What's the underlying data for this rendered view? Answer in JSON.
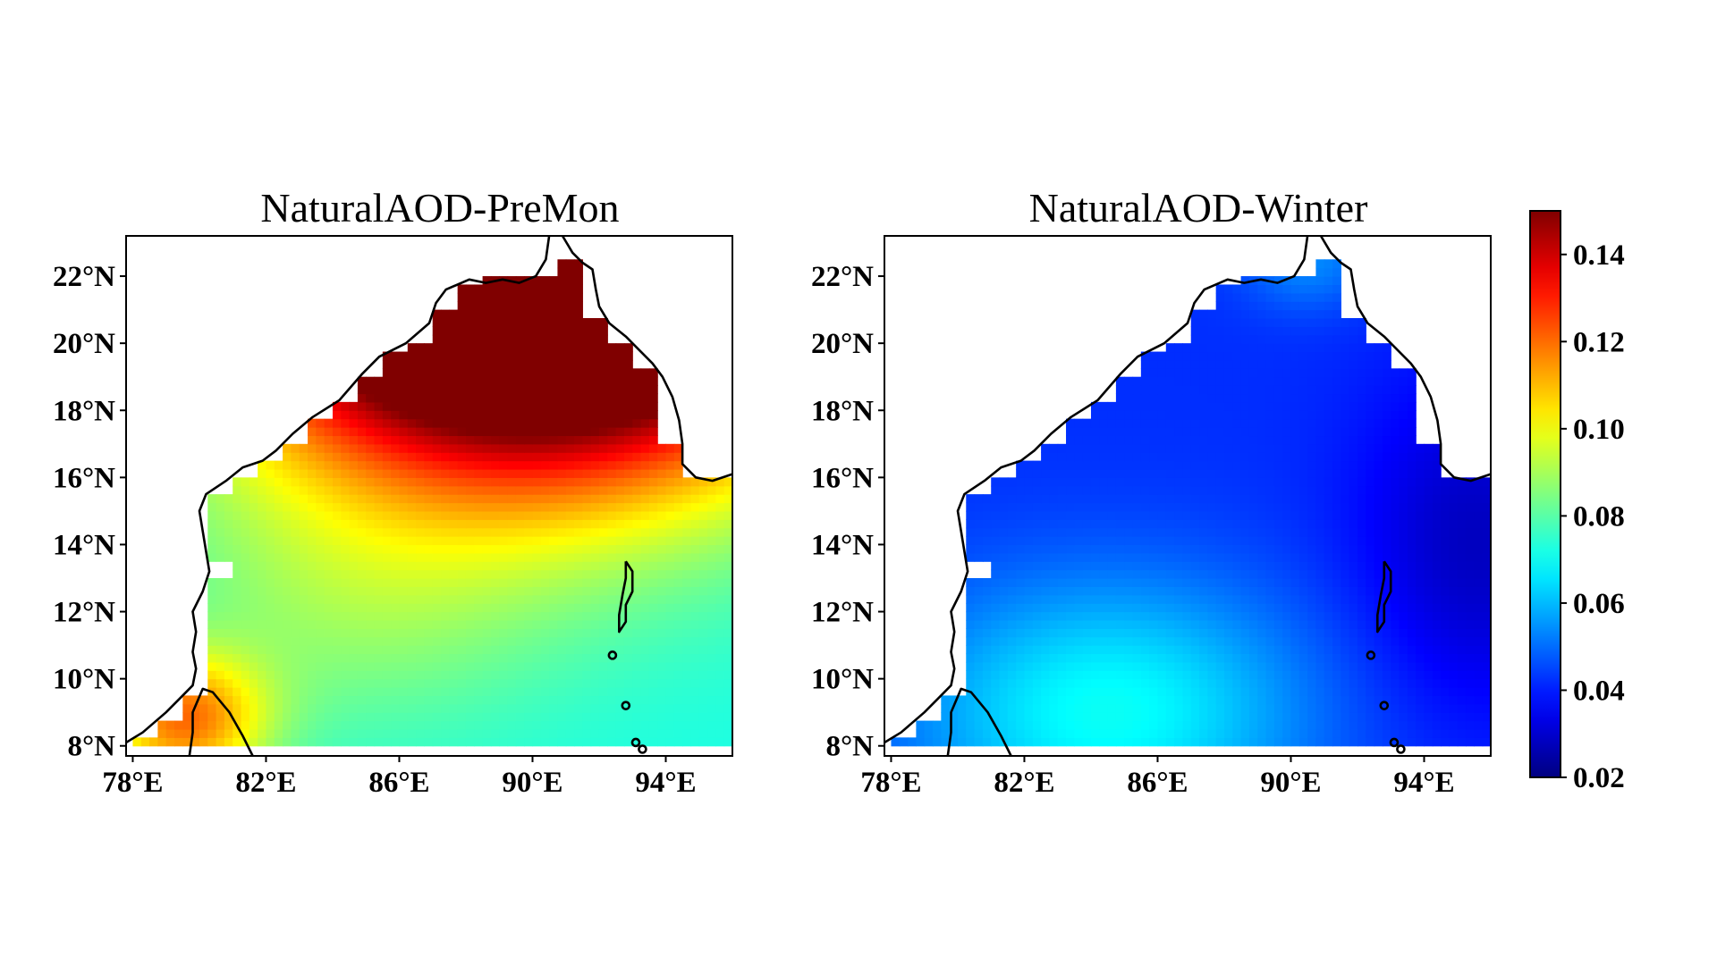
{
  "chart_data": {
    "type": "heatmap",
    "panels": [
      {
        "key": "premon",
        "title": "NaturalAOD-PreMon",
        "field": {
          "base": 0.072,
          "hotspots": [
            {
              "lon": 90.0,
              "lat": 23.0,
              "amplitude": 0.17,
              "lon_scale": 9.0,
              "lat_scale": 6.5
            },
            {
              "lon": 79.5,
              "lat": 8.8,
              "amplitude": 0.045,
              "lon_scale": 2.5,
              "lat_scale": 2.0
            },
            {
              "lon": 84.5,
              "lat": 12.0,
              "amplitude": 0.012,
              "lon_scale": 6.0,
              "lat_scale": 4.0
            }
          ]
        }
      },
      {
        "key": "winter",
        "title": "NaturalAOD-Winter",
        "field": {
          "base": 0.042,
          "hotspots": [
            {
              "lon": 84.5,
              "lat": 9.0,
              "amplitude": 0.028,
              "lon_scale": 6.0,
              "lat_scale": 4.0
            },
            {
              "lon": 90.5,
              "lat": 22.5,
              "amplitude": 0.012,
              "lon_scale": 2.0,
              "lat_scale": 1.5
            },
            {
              "lon": 95.5,
              "lat": 14.0,
              "amplitude": -0.014,
              "lon_scale": 3.5,
              "lat_scale": 5.0
            }
          ]
        }
      }
    ],
    "x_axis": {
      "lim": [
        77.8,
        96.0
      ],
      "ticks": [
        78,
        82,
        86,
        90,
        94
      ],
      "tick_labels": [
        "78°E",
        "82°E",
        "86°E",
        "90°E",
        "94°E"
      ]
    },
    "y_axis": {
      "lim": [
        7.7,
        23.2
      ],
      "ticks": [
        8,
        10,
        12,
        14,
        16,
        18,
        20,
        22
      ],
      "tick_labels": [
        "8°N",
        "10°N",
        "12°N",
        "14°N",
        "16°N",
        "18°N",
        "20°N",
        "22°N"
      ]
    },
    "colorbar": {
      "colormap": "jet",
      "range": [
        0.02,
        0.15
      ],
      "ticks": [
        0.02,
        0.04,
        0.06,
        0.08,
        0.1,
        0.12,
        0.14
      ],
      "tick_labels": [
        "0.02",
        "0.04",
        "0.06",
        "0.08",
        "0.10",
        "0.12",
        "0.14"
      ]
    },
    "grid": false,
    "legend": "right (colorbar)",
    "coastline_lonlat": [
      [
        77.8,
        8.1
      ],
      [
        78.3,
        8.4
      ],
      [
        79.0,
        9.0
      ],
      [
        79.4,
        9.4
      ],
      [
        79.8,
        9.8
      ],
      [
        79.9,
        10.3
      ],
      [
        79.8,
        10.8
      ],
      [
        79.9,
        11.4
      ],
      [
        79.8,
        12.0
      ],
      [
        80.1,
        12.6
      ],
      [
        80.3,
        13.2
      ],
      [
        80.2,
        13.8
      ],
      [
        80.1,
        14.4
      ],
      [
        80.0,
        15.0
      ],
      [
        80.2,
        15.5
      ],
      [
        80.8,
        15.9
      ],
      [
        81.3,
        16.3
      ],
      [
        81.9,
        16.5
      ],
      [
        82.3,
        16.8
      ],
      [
        82.8,
        17.3
      ],
      [
        83.4,
        17.8
      ],
      [
        84.2,
        18.3
      ],
      [
        84.9,
        19.1
      ],
      [
        85.4,
        19.6
      ],
      [
        86.2,
        20.0
      ],
      [
        86.9,
        20.6
      ],
      [
        87.1,
        21.2
      ],
      [
        87.4,
        21.6
      ],
      [
        88.1,
        21.9
      ],
      [
        88.6,
        21.8
      ],
      [
        89.1,
        21.9
      ],
      [
        89.6,
        21.8
      ],
      [
        90.1,
        22.0
      ],
      [
        90.4,
        22.5
      ],
      [
        90.5,
        23.2
      ]
    ],
    "coastline_east_lonlat": [
      [
        90.9,
        23.2
      ],
      [
        91.2,
        22.7
      ],
      [
        91.5,
        22.4
      ],
      [
        91.8,
        22.2
      ],
      [
        91.9,
        21.6
      ],
      [
        92.0,
        21.1
      ],
      [
        92.3,
        20.6
      ],
      [
        92.8,
        20.2
      ],
      [
        93.1,
        19.9
      ],
      [
        93.6,
        19.4
      ],
      [
        93.9,
        19.0
      ],
      [
        94.2,
        18.4
      ],
      [
        94.4,
        17.7
      ],
      [
        94.5,
        17.0
      ],
      [
        94.5,
        16.4
      ],
      [
        94.9,
        16.0
      ],
      [
        95.4,
        15.9
      ],
      [
        96.0,
        16.1
      ]
    ],
    "sri_lanka_lonlat": [
      [
        79.7,
        7.7
      ],
      [
        79.8,
        8.4
      ],
      [
        79.8,
        9.0
      ],
      [
        80.1,
        9.7
      ],
      [
        80.4,
        9.6
      ],
      [
        80.9,
        9.0
      ],
      [
        81.3,
        8.3
      ],
      [
        81.6,
        7.7
      ]
    ],
    "andaman_lonlat": [
      [
        92.8,
        13.5
      ],
      [
        93.0,
        13.2
      ],
      [
        93.0,
        12.6
      ],
      [
        92.8,
        12.2
      ],
      [
        92.8,
        11.7
      ],
      [
        92.6,
        11.4
      ],
      [
        92.6,
        11.9
      ],
      [
        92.7,
        12.5
      ],
      [
        92.8,
        13.0
      ],
      [
        92.8,
        13.5
      ]
    ]
  }
}
